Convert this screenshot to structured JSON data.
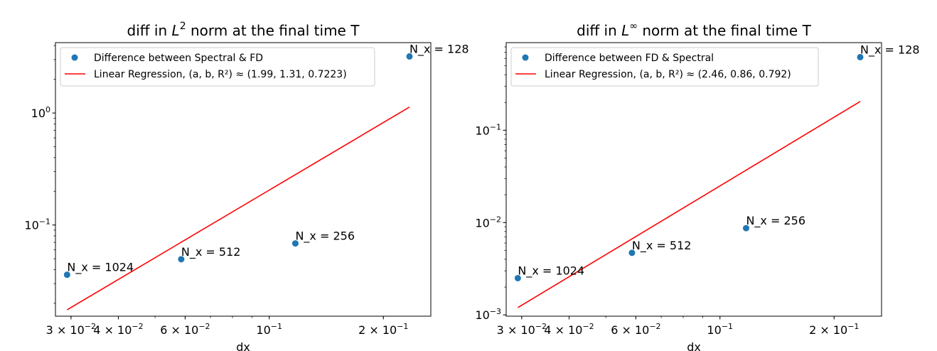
{
  "chart_data": [
    {
      "type": "scatter",
      "title": "diff in L² norm at the final time T",
      "title_parts": {
        "before": "diff in ",
        "var": "L",
        "sup": "2",
        "after": " norm at the final time T"
      },
      "xlabel": "dx",
      "ylabel": "",
      "xscale": "log",
      "yscale": "log",
      "xlim": [
        0.0273,
        0.2668
      ],
      "ylim": [
        0.01535,
        4.25
      ],
      "x_ticks": [
        {
          "value": 0.03,
          "label": "3 × 10⁻²"
        },
        {
          "value": 0.04,
          "label": "4 × 10⁻²"
        },
        {
          "value": 0.06,
          "label": "6 × 10⁻²"
        },
        {
          "value": 0.1,
          "label": "10⁻¹"
        },
        {
          "value": 0.2,
          "label": "2 × 10⁻¹"
        }
      ],
      "y_ticks": [
        {
          "value": 1,
          "label": "10⁰"
        },
        {
          "value": 0.1,
          "label": "10⁻¹"
        }
      ],
      "series": [
        {
          "name": "Difference between Spectral & FD",
          "type": "scatter",
          "color": "#1f77b4",
          "x": [
            0.0293,
            0.0586,
            0.1172,
            0.2344
          ],
          "y": [
            0.036,
            0.0495,
            0.0685,
            3.2
          ],
          "labels": [
            "N_x = 1024",
            "N_x = 512",
            "N_x = 256",
            "N_x = 128"
          ]
        },
        {
          "name": "Linear Regression, (a, b, R²) ≈ (1.99, 1.31, 0.7223)",
          "type": "line",
          "color": "#ff0000",
          "x": [
            0.0293,
            0.2344
          ],
          "y": [
            0.0175,
            1.13
          ]
        }
      ],
      "legend": "upper left",
      "grid": false
    },
    {
      "type": "scatter",
      "title": "diff in L∞ norm at the final time T",
      "title_parts": {
        "before": "diff in ",
        "var": "L",
        "sup": "∞",
        "after": " norm at the final time T"
      },
      "xlabel": "dx",
      "ylabel": "",
      "xscale": "log",
      "yscale": "log",
      "xlim": [
        0.0273,
        0.2668
      ],
      "ylim": [
        0.000968,
        0.89
      ],
      "x_ticks": [
        {
          "value": 0.03,
          "label": "3 × 10⁻²"
        },
        {
          "value": 0.04,
          "label": "4 × 10⁻²"
        },
        {
          "value": 0.06,
          "label": "6 × 10⁻²"
        },
        {
          "value": 0.1,
          "label": "10⁻¹"
        },
        {
          "value": 0.2,
          "label": "2 × 10⁻¹"
        }
      ],
      "y_ticks": [
        {
          "value": 0.1,
          "label": "10⁻¹"
        },
        {
          "value": 0.01,
          "label": "10⁻²"
        },
        {
          "value": 0.001,
          "label": "10⁻³"
        }
      ],
      "series": [
        {
          "name": "Difference between FD & Spectral",
          "type": "scatter",
          "color": "#1f77b4",
          "x": [
            0.0293,
            0.0586,
            0.1172,
            0.2344
          ],
          "y": [
            0.0025,
            0.0047,
            0.0087,
            0.62
          ],
          "labels": [
            "N_x = 1024",
            "N_x = 512",
            "N_x = 256",
            "N_x = 128"
          ]
        },
        {
          "name": "Linear Regression, (a, b, R²) ≈ (2.46, 0.86, 0.792)",
          "type": "line",
          "color": "#ff0000",
          "x": [
            0.0293,
            0.2344
          ],
          "y": [
            0.0012,
            0.205
          ]
        }
      ],
      "legend": "upper left",
      "grid": false
    }
  ]
}
